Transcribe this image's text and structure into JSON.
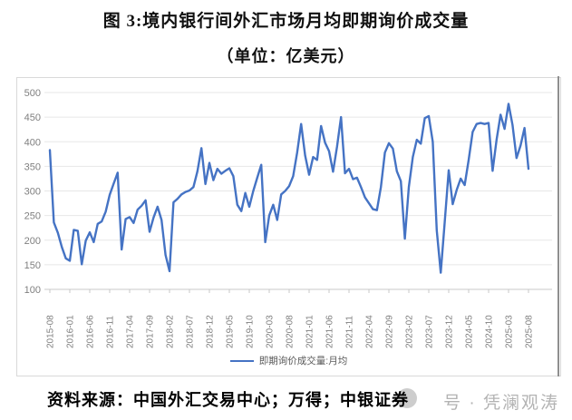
{
  "page": {
    "title": "图 3:境内银行间外汇市场月均即期询价成交量",
    "subtitle": "（单位：亿美元）",
    "source": "资料来源：中国外汇交易中心；万得；中银证券",
    "watermark": "号 · 凭澜观涛"
  },
  "chart_data": {
    "type": "line",
    "title": "境内银行间外汇市场月均即期询价成交量",
    "unit": "亿美元",
    "grid": true,
    "legend_position": "bottom",
    "line_color": "#4573C4",
    "ylim": [
      100,
      500
    ],
    "yticks": [
      100,
      150,
      200,
      250,
      300,
      350,
      400,
      450,
      500
    ],
    "x_tick_labels": [
      "2015-08",
      "2016-01",
      "2016-06",
      "2016-11",
      "2017-04",
      "2017-09",
      "2018-02",
      "2018-07",
      "2018-12",
      "2019-05",
      "2019-10",
      "2020-03",
      "2020-08",
      "2021-01",
      "2021-06",
      "2021-11",
      "2022-04",
      "2022-09",
      "2023-02",
      "2023-07",
      "2023-12",
      "2024-05",
      "2024-10",
      "2025-03",
      "2025-08"
    ],
    "x": [
      "2015-08",
      "2015-09",
      "2015-10",
      "2015-11",
      "2015-12",
      "2016-01",
      "2016-02",
      "2016-03",
      "2016-04",
      "2016-05",
      "2016-06",
      "2016-07",
      "2016-08",
      "2016-09",
      "2016-10",
      "2016-11",
      "2016-12",
      "2017-01",
      "2017-02",
      "2017-03",
      "2017-04",
      "2017-05",
      "2017-06",
      "2017-07",
      "2017-08",
      "2017-09",
      "2017-10",
      "2017-11",
      "2017-12",
      "2018-01",
      "2018-02",
      "2018-03",
      "2018-04",
      "2018-05",
      "2018-06",
      "2018-07",
      "2018-08",
      "2018-09",
      "2018-10",
      "2018-11",
      "2018-12",
      "2019-01",
      "2019-02",
      "2019-03",
      "2019-04",
      "2019-05",
      "2019-06",
      "2019-07",
      "2019-08",
      "2019-09",
      "2019-10",
      "2019-11",
      "2019-12",
      "2020-01",
      "2020-02",
      "2020-03",
      "2020-04",
      "2020-05",
      "2020-06",
      "2020-07",
      "2020-08",
      "2020-09",
      "2020-10",
      "2020-11",
      "2020-12",
      "2021-01",
      "2021-02",
      "2021-03",
      "2021-04",
      "2021-05",
      "2021-06",
      "2021-07",
      "2021-08",
      "2021-09",
      "2021-10",
      "2021-11",
      "2021-12",
      "2022-01",
      "2022-02",
      "2022-03",
      "2022-04",
      "2022-05",
      "2022-06",
      "2022-07",
      "2022-08",
      "2022-09",
      "2022-10",
      "2022-11",
      "2022-12",
      "2023-01",
      "2023-02",
      "2023-03",
      "2023-04",
      "2023-05",
      "2023-06",
      "2023-07",
      "2023-08",
      "2023-09",
      "2023-10",
      "2023-11",
      "2023-12",
      "2024-01",
      "2024-02",
      "2024-03",
      "2024-04",
      "2024-05",
      "2024-06",
      "2024-07",
      "2024-08",
      "2024-09",
      "2024-10",
      "2024-11",
      "2024-12",
      "2025-01",
      "2025-02",
      "2025-03",
      "2025-04",
      "2025-05",
      "2025-06",
      "2025-07",
      "2025-08"
    ],
    "series": [
      {
        "name": "即期询价成交量:月均",
        "values": [
          383,
          236,
          215,
          186,
          163,
          158,
          221,
          219,
          151,
          199,
          216,
          196,
          233,
          238,
          258,
          292,
          315,
          337,
          181,
          243,
          247,
          235,
          262,
          270,
          281,
          217,
          246,
          268,
          241,
          170,
          137,
          277,
          284,
          293,
          298,
          301,
          308,
          340,
          387,
          314,
          357,
          322,
          345,
          335,
          341,
          346,
          330,
          272,
          259,
          296,
          268,
          300,
          327,
          353,
          196,
          250,
          272,
          241,
          293,
          300,
          310,
          330,
          378,
          436,
          372,
          333,
          369,
          363,
          432,
          398,
          381,
          339,
          390,
          450,
          336,
          345,
          324,
          327,
          308,
          287,
          275,
          263,
          261,
          308,
          378,
          397,
          386,
          340,
          320,
          203,
          308,
          369,
          404,
          396,
          448,
          452,
          400,
          220,
          134,
          237,
          342,
          273,
          302,
          325,
          312,
          363,
          420,
          436,
          438,
          436,
          438,
          341,
          404,
          455,
          426,
          477,
          434,
          367,
          392,
          428,
          345
        ]
      }
    ]
  }
}
